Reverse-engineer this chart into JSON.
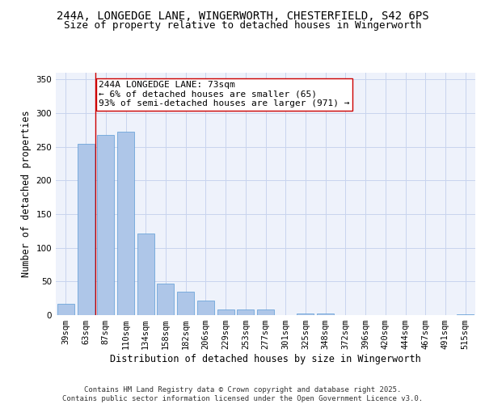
{
  "title_line1": "244A, LONGEDGE LANE, WINGERWORTH, CHESTERFIELD, S42 6PS",
  "title_line2": "Size of property relative to detached houses in Wingerworth",
  "xlabel": "Distribution of detached houses by size in Wingerworth",
  "ylabel": "Number of detached properties",
  "categories": [
    "39sqm",
    "63sqm",
    "87sqm",
    "110sqm",
    "134sqm",
    "158sqm",
    "182sqm",
    "206sqm",
    "229sqm",
    "253sqm",
    "277sqm",
    "301sqm",
    "325sqm",
    "348sqm",
    "372sqm",
    "396sqm",
    "420sqm",
    "444sqm",
    "467sqm",
    "491sqm",
    "515sqm"
  ],
  "values": [
    17,
    254,
    268,
    273,
    121,
    47,
    35,
    22,
    9,
    8,
    8,
    0,
    3,
    3,
    0,
    0,
    0,
    0,
    0,
    0,
    1
  ],
  "bar_color": "#aec6e8",
  "bar_edge_color": "#5b9bd5",
  "ylim": [
    0,
    360
  ],
  "yticks": [
    0,
    50,
    100,
    150,
    200,
    250,
    300,
    350
  ],
  "annotation_text": "244A LONGEDGE LANE: 73sqm\n← 6% of detached houses are smaller (65)\n93% of semi-detached houses are larger (971) →",
  "vline_x": 1.5,
  "vline_color": "#cc0000",
  "bg_color": "#eef2fb",
  "grid_color": "#c8d4ee",
  "footer_text": "Contains HM Land Registry data © Crown copyright and database right 2025.\nContains public sector information licensed under the Open Government Licence v3.0.",
  "title_fontsize": 10,
  "subtitle_fontsize": 9,
  "axis_label_fontsize": 8.5,
  "tick_fontsize": 7.5,
  "annotation_fontsize": 8,
  "footer_fontsize": 6.5
}
